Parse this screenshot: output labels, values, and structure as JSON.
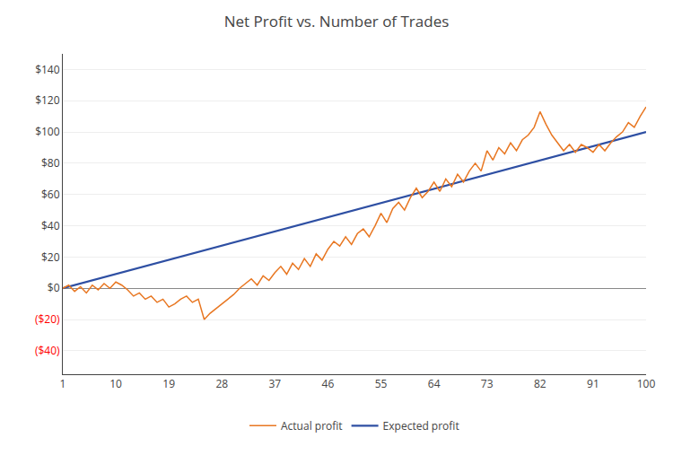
{
  "chart_data": {
    "type": "line",
    "title": "Net Profit vs. Number of Trades",
    "xlim": [
      1,
      100
    ],
    "xticks": [
      1,
      10,
      19,
      28,
      37,
      46,
      55,
      64,
      73,
      82,
      91,
      100
    ],
    "ylim": [
      -55,
      150
    ],
    "yticks": [
      {
        "value": -40,
        "label": "($40)"
      },
      {
        "value": -20,
        "label": "($20)"
      },
      {
        "value": 0,
        "label": "$0"
      },
      {
        "value": 20,
        "label": "$20"
      },
      {
        "value": 40,
        "label": "$40"
      },
      {
        "value": 60,
        "label": "$60"
      },
      {
        "value": 80,
        "label": "$80"
      },
      {
        "value": 100,
        "label": "$100"
      },
      {
        "value": 120,
        "label": "$120"
      },
      {
        "value": 140,
        "label": "$140"
      }
    ],
    "grid": "y",
    "legend": "bottom",
    "series": [
      {
        "name": "Expected profit",
        "color": "#2E4FA3",
        "x": [
          1,
          100
        ],
        "values": [
          0,
          100
        ]
      },
      {
        "name": "Actual profit",
        "color": "#E87722",
        "x": [
          1,
          2,
          3,
          4,
          5,
          6,
          7,
          8,
          9,
          10,
          11,
          12,
          13,
          14,
          15,
          16,
          17,
          18,
          19,
          20,
          21,
          22,
          23,
          24,
          25,
          26,
          27,
          28,
          29,
          30,
          31,
          32,
          33,
          34,
          35,
          36,
          37,
          38,
          39,
          40,
          41,
          42,
          43,
          44,
          45,
          46,
          47,
          48,
          49,
          50,
          51,
          52,
          53,
          54,
          55,
          56,
          57,
          58,
          59,
          60,
          61,
          62,
          63,
          64,
          65,
          66,
          67,
          68,
          69,
          70,
          71,
          72,
          73,
          74,
          75,
          76,
          77,
          78,
          79,
          80,
          81,
          82,
          83,
          84,
          85,
          86,
          87,
          88,
          89,
          90,
          91,
          92,
          93,
          94,
          95,
          96,
          97,
          98,
          99,
          100
        ],
        "values": [
          0,
          2,
          -2,
          1,
          -3,
          2,
          -1,
          3,
          0,
          4,
          2,
          -1,
          -5,
          -3,
          -7,
          -5,
          -9,
          -7,
          -12,
          -10,
          -7,
          -5,
          -9,
          -7,
          -20,
          -16,
          -13,
          -10,
          -7,
          -4,
          0,
          3,
          6,
          2,
          8,
          5,
          10,
          14,
          9,
          16,
          12,
          19,
          14,
          22,
          18,
          25,
          30,
          27,
          33,
          28,
          35,
          38,
          33,
          40,
          48,
          42,
          51,
          55,
          50,
          58,
          64,
          58,
          62,
          68,
          62,
          70,
          65,
          73,
          68,
          75,
          80,
          75,
          88,
          82,
          90,
          86,
          93,
          88,
          95,
          98,
          103,
          113,
          105,
          98,
          93,
          88,
          92,
          87,
          92,
          90,
          87,
          92,
          88,
          93,
          97,
          100,
          106,
          103,
          110,
          116
        ]
      }
    ]
  }
}
